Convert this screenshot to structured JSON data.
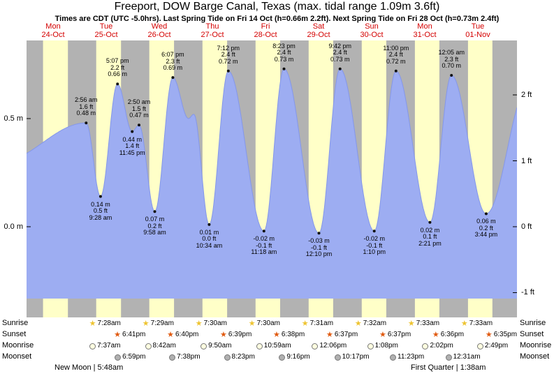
{
  "title": "Freeport, DOW Barge Canal, Texas (max. tidal range 1.09m 3.6ft)",
  "subtitle": "Times are CDT (UTC -5.0hrs). Last Spring Tide on Fri 14 Oct (h=0.66m 2.2ft). Next Spring Tide on Fri 28 Oct (h=0.73m 2.4ft)",
  "colors": {
    "day_band": "#ffffc8",
    "night_band": "#b2b2b2",
    "tide_fill": "#9dadf2",
    "tide_stroke": "#8497ea",
    "day_label": "#d40000",
    "sunrise_star": "#eec431",
    "sunset_star": "#e05a10",
    "moonrise_disc": "#ffffe0",
    "moonset_disc": "#b0b0b0"
  },
  "days": [
    {
      "name": "Mon",
      "date": "24-Oct"
    },
    {
      "name": "Tue",
      "date": "25-Oct"
    },
    {
      "name": "Wed",
      "date": "26-Oct"
    },
    {
      "name": "Thu",
      "date": "27-Oct"
    },
    {
      "name": "Fri",
      "date": "28-Oct"
    },
    {
      "name": "Sat",
      "date": "29-Oct"
    },
    {
      "name": "Sun",
      "date": "30-Oct"
    },
    {
      "name": "Mon",
      "date": "31-Oct"
    },
    {
      "name": "Tue",
      "date": "01-Nov"
    }
  ],
  "chart_data": {
    "type": "area",
    "title": "Tide height over time, Mon 24-Oct to Tue 01-Nov",
    "x_range_days": [
      0,
      9.237
    ],
    "ylim_m": [
      -0.42,
      0.86
    ],
    "y_axis_left": [
      {
        "label": "0.5 m",
        "value": 0.5
      },
      {
        "label": "0.0 m",
        "value": 0.0
      }
    ],
    "y_axis_right": [
      {
        "label": "2 ft",
        "value": 0.6096
      },
      {
        "label": "1 ft",
        "value": 0.3048
      },
      {
        "label": "0 ft",
        "value": 0.0
      },
      {
        "label": "-1 ft",
        "value": -0.3048
      }
    ],
    "tide_events": [
      {
        "t": 1.122,
        "h": 0.48,
        "type": "high",
        "lines": [
          "2:56 am",
          "1.6 ft",
          "0.48 m"
        ]
      },
      {
        "t": 1.394,
        "h": 0.14,
        "type": "low",
        "lines": [
          "0.14 m",
          "0.5 ft",
          "9:28 am"
        ]
      },
      {
        "t": 1.713,
        "h": 0.66,
        "type": "high",
        "lines": [
          "5:07 pm",
          "2.2 ft",
          "0.66 m"
        ]
      },
      {
        "t": 1.99,
        "h": 0.44,
        "type": "low",
        "lines": [
          "0.44 m",
          "1.4 ft",
          "11:45 pm"
        ]
      },
      {
        "t": 2.118,
        "h": 0.47,
        "type": "high",
        "lines": [
          "2:50 am",
          "1.5 ft",
          "0.47 m"
        ]
      },
      {
        "t": 2.415,
        "h": 0.07,
        "type": "low",
        "lines": [
          "0.07 m",
          "0.2 ft",
          "9:58 am"
        ]
      },
      {
        "t": 2.755,
        "h": 0.69,
        "type": "high",
        "lines": [
          "6:07 pm",
          "2.3 ft",
          "0.69 m"
        ]
      },
      {
        "t": 3.44,
        "h": 0.01,
        "type": "low",
        "lines": [
          "0.01 m",
          "0.0 ft",
          "10:34 am"
        ]
      },
      {
        "t": 3.8,
        "h": 0.72,
        "type": "high",
        "lines": [
          "7:12 pm",
          "2.4 ft",
          "0.72 m"
        ]
      },
      {
        "t": 4.471,
        "h": -0.02,
        "type": "low",
        "lines": [
          "-0.02 m",
          "-0.1 ft",
          "11:18 am"
        ]
      },
      {
        "t": 4.849,
        "h": 0.73,
        "type": "high",
        "lines": [
          "8:23 pm",
          "2.4 ft",
          "0.73 m"
        ]
      },
      {
        "t": 5.507,
        "h": -0.03,
        "type": "low",
        "lines": [
          "-0.03 m",
          "-0.1 ft",
          "12:10 pm"
        ]
      },
      {
        "t": 5.904,
        "h": 0.73,
        "type": "high",
        "lines": [
          "9:42 pm",
          "2.4 ft",
          "0.73 m"
        ]
      },
      {
        "t": 6.549,
        "h": -0.02,
        "type": "low",
        "lines": [
          "-0.02 m",
          "-0.1 ft",
          "1:10 pm"
        ]
      },
      {
        "t": 6.958,
        "h": 0.72,
        "type": "high",
        "lines": [
          "11:00 pm",
          "2.4 ft",
          "0.72 m"
        ]
      },
      {
        "t": 7.598,
        "h": 0.02,
        "type": "low",
        "lines": [
          "0.02 m",
          "0.1 ft",
          "2:21 pm"
        ]
      },
      {
        "t": 8.003,
        "h": 0.7,
        "type": "high",
        "lines": [
          "12:05 am",
          "2.3 ft",
          "0.70 m"
        ]
      },
      {
        "t": 8.656,
        "h": 0.06,
        "type": "low",
        "lines": [
          "0.06 m",
          "0.2 ft",
          "3:44 pm"
        ]
      }
    ],
    "curve_control_points": [
      {
        "t": -0.5,
        "h": 0.3
      },
      {
        "t": 1.122,
        "h": 0.48
      },
      {
        "t": 1.394,
        "h": 0.14
      },
      {
        "t": 1.713,
        "h": 0.66
      },
      {
        "t": 1.99,
        "h": 0.44
      },
      {
        "t": 2.118,
        "h": 0.47
      },
      {
        "t": 2.415,
        "h": 0.07
      },
      {
        "t": 2.755,
        "h": 0.69
      },
      {
        "t": 3.05,
        "h": 0.5
      },
      {
        "t": 3.15,
        "h": 0.52
      },
      {
        "t": 3.44,
        "h": 0.01
      },
      {
        "t": 3.8,
        "h": 0.72
      },
      {
        "t": 4.471,
        "h": -0.02
      },
      {
        "t": 4.849,
        "h": 0.73
      },
      {
        "t": 5.507,
        "h": -0.03
      },
      {
        "t": 5.904,
        "h": 0.73
      },
      {
        "t": 6.549,
        "h": -0.02
      },
      {
        "t": 6.958,
        "h": 0.72
      },
      {
        "t": 7.598,
        "h": 0.02
      },
      {
        "t": 8.003,
        "h": 0.7
      },
      {
        "t": 8.656,
        "h": 0.06
      },
      {
        "t": 9.45,
        "h": 0.65
      }
    ]
  },
  "sun_bands": [
    {
      "rise_h": 7.45,
      "set_h": 18.7
    },
    {
      "rise_h": 7.47,
      "set_h": 18.68
    },
    {
      "rise_h": 7.48,
      "set_h": 18.67
    },
    {
      "rise_h": 7.5,
      "set_h": 18.65
    },
    {
      "rise_h": 7.5,
      "set_h": 18.63
    },
    {
      "rise_h": 7.52,
      "set_h": 18.62
    },
    {
      "rise_h": 7.53,
      "set_h": 18.62
    },
    {
      "rise_h": 7.55,
      "set_h": 18.6
    },
    {
      "rise_h": 7.55,
      "set_h": 18.58
    },
    {
      "rise_h": 7.57,
      "set_h": 18.57
    }
  ],
  "astro": {
    "row_labels": [
      "Sunrise",
      "Sunset",
      "Moonrise",
      "Moonset"
    ],
    "sunrise": [
      {
        "time": "7:28am",
        "day": 1
      },
      {
        "time": "7:29am",
        "day": 2
      },
      {
        "time": "7:30am",
        "day": 3
      },
      {
        "time": "7:30am",
        "day": 4
      },
      {
        "time": "7:31am",
        "day": 5
      },
      {
        "time": "7:32am",
        "day": 6
      },
      {
        "time": "7:33am",
        "day": 7
      },
      {
        "time": "7:33am",
        "day": 8
      }
    ],
    "sunset": [
      {
        "time": "6:41pm",
        "day": 1
      },
      {
        "time": "6:40pm",
        "day": 2
      },
      {
        "time": "6:39pm",
        "day": 3
      },
      {
        "time": "6:38pm",
        "day": 4
      },
      {
        "time": "6:37pm",
        "day": 5
      },
      {
        "time": "6:37pm",
        "day": 6
      },
      {
        "time": "6:36pm",
        "day": 7
      },
      {
        "time": "6:35pm",
        "day": 8
      }
    ],
    "moonrise": [
      {
        "time": "7:37am",
        "day": 1
      },
      {
        "time": "8:42am",
        "day": 2
      },
      {
        "time": "9:50am",
        "day": 3
      },
      {
        "time": "10:59am",
        "day": 4
      },
      {
        "time": "12:06pm",
        "day": 5
      },
      {
        "time": "1:08pm",
        "day": 6
      },
      {
        "time": "2:02pm",
        "day": 7
      },
      {
        "time": "2:49pm",
        "day": 8
      }
    ],
    "moonset": [
      {
        "time": "6:59pm",
        "day": 1
      },
      {
        "time": "7:38pm",
        "day": 2
      },
      {
        "time": "8:23pm",
        "day": 3
      },
      {
        "time": "9:16pm",
        "day": 4
      },
      {
        "time": "10:17pm",
        "day": 5
      },
      {
        "time": "11:23pm",
        "day": 6
      },
      {
        "time": "12:31am",
        "day": 8
      }
    ],
    "moon_phases": [
      {
        "label": "New Moon | 5:48am"
      },
      {
        "label": "First Quarter | 1:38am"
      }
    ]
  }
}
